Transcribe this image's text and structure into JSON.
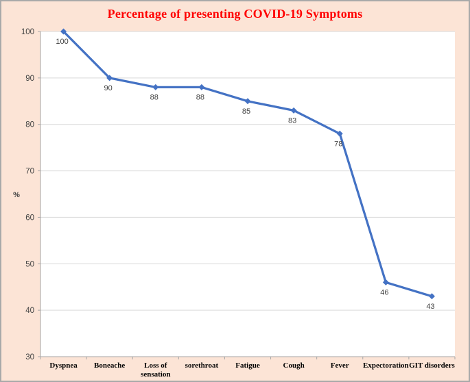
{
  "chart_data": {
    "type": "line",
    "title": "Percentage of presenting COVID-19 Symptoms",
    "categories": [
      "Dyspnea",
      "Boneache",
      "Loss of\nsensation",
      "sorethroat",
      "Fatigue",
      "Cough",
      "Fever",
      "Expectoration",
      "GIT disorders"
    ],
    "values": [
      100,
      90,
      88,
      88,
      85,
      83,
      78,
      46,
      43
    ],
    "data_labels": [
      "100",
      "90",
      "88",
      "88",
      "85",
      "83",
      "78",
      "46",
      "43"
    ],
    "xlabel": "",
    "ylabel": "%",
    "ylim": [
      30,
      100
    ],
    "yticks": [
      30,
      40,
      50,
      60,
      70,
      80,
      90,
      100
    ],
    "grid": "horizontal",
    "legend": "none",
    "marker": "diamond",
    "colors": {
      "line": "#4472C4",
      "marker": "#4472C4",
      "title": "#FF0000",
      "axis": "#A6A6A6",
      "gridline": "#D9D9D9",
      "tick_label": "#404040",
      "data_label": "#404040",
      "category_label": "#000000",
      "background": "#FCE4D6",
      "plot_background": "#FFFFFF",
      "border": "#A9A9A9"
    }
  }
}
